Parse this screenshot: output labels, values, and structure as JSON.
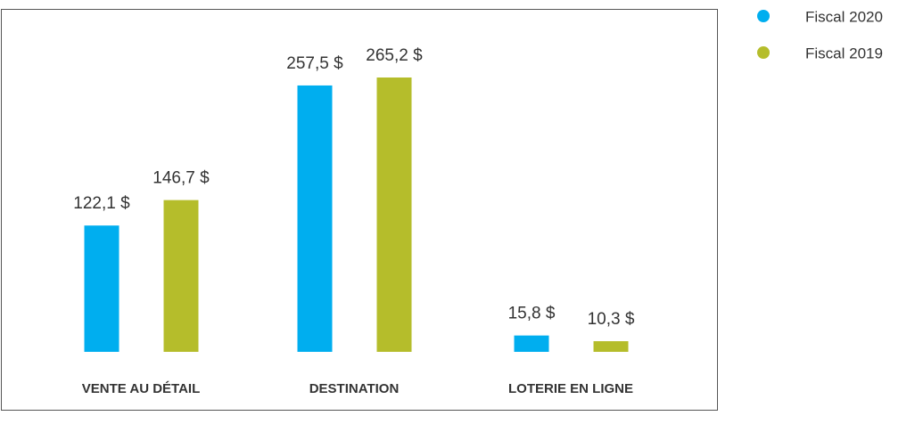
{
  "chart_data": {
    "type": "bar",
    "categories": [
      "VENTE AU DÉTAIL",
      "DESTINATION",
      "LOTERIE EN LIGNE"
    ],
    "series": [
      {
        "name": "Fiscal 2020",
        "color": "#00aeef",
        "values": [
          122.1,
          257.5,
          15.8
        ],
        "value_labels": [
          "122,1 $",
          "257,5 $",
          "15,8 $"
        ]
      },
      {
        "name": "Fiscal 2019",
        "color": "#b5bd2b",
        "values": [
          146.7,
          265.2,
          10.3
        ],
        "value_labels": [
          "146,7 $",
          "265,2 $",
          "10,3 $"
        ]
      }
    ]
  }
}
